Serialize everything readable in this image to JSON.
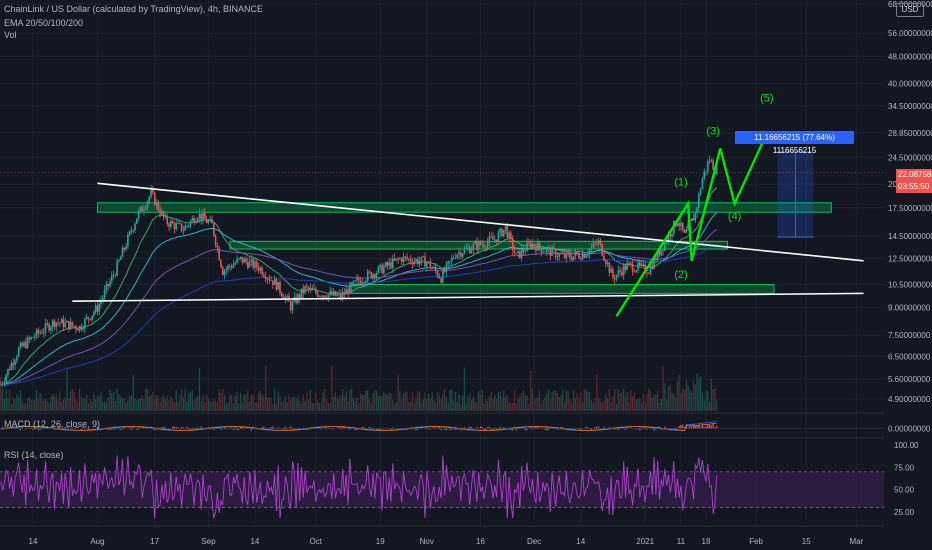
{
  "header": {
    "symbol_line": "ChainLink / US Dollar (calculated by TradingView), 4h, BINANCE",
    "ema_line": "EMA 20/50/100/200",
    "vol_line": "Vol",
    "currency_badge": "USD"
  },
  "colors": {
    "background": "#131722",
    "up": "#26a69a",
    "down": "#ef5350",
    "ema20": "#3cb371",
    "ema50": "#26c6da",
    "ema100": "#7e57c2",
    "ema200": "#1e3fd0",
    "zone": "#00c853",
    "trendline": "#ffffff",
    "wave": "#00e600",
    "rsi_line": "#b03fcf",
    "rsi_band": "#3b1f52",
    "measure": "#2962ff",
    "macd_line": "#2962ff",
    "signal_line": "#ff6d00"
  },
  "chart_data": {
    "type": "candlestick",
    "price_axis": {
      "scale": "log",
      "ticks": [
        "68.00000000",
        "56.00000000",
        "48.00000000",
        "40.00000000",
        "34.50000000",
        "28.85000000",
        "24.50000000",
        "20.50000000",
        "17.50000000",
        "14.50000000",
        "12.50000000",
        "10.50000000",
        "9.00000000",
        "7.50000000",
        "6.50000000",
        "5.60000000",
        "4.90000000"
      ],
      "tick_values": [
        68,
        56,
        48,
        40,
        34.5,
        28.85,
        24.5,
        20.5,
        17.5,
        14.5,
        12.5,
        10.5,
        9,
        7.5,
        6.5,
        5.6,
        4.9
      ]
    },
    "current_price": {
      "label": "22.08758427",
      "value": 22.08758427,
      "countdown": "03:55:50"
    },
    "time_axis": {
      "labels": [
        "14",
        "Aug",
        "17",
        "Sep",
        "14",
        "Oct",
        "19",
        "Nov",
        "16",
        "Dec",
        "14",
        "2021",
        "11",
        "18",
        "Feb",
        "15",
        "Mar"
      ],
      "dates": [
        "2020-07-14",
        "2020-08-01",
        "2020-08-17",
        "2020-09-01",
        "2020-09-14",
        "2020-10-01",
        "2020-10-19",
        "2020-11-01",
        "2020-11-16",
        "2020-12-01",
        "2020-12-14",
        "2021-01-01",
        "2021-01-11",
        "2021-01-18",
        "2021-02-01",
        "2021-02-15",
        "2021-03-01"
      ]
    },
    "price_path": [
      [
        "2020-07-05",
        5.4
      ],
      [
        "2020-07-10",
        6.8
      ],
      [
        "2020-07-14",
        7.4
      ],
      [
        "2020-07-20",
        8.2
      ],
      [
        "2020-07-27",
        7.9
      ],
      [
        "2020-08-01",
        9.0
      ],
      [
        "2020-08-06",
        11.5
      ],
      [
        "2020-08-12",
        16.5
      ],
      [
        "2020-08-16",
        19.2
      ],
      [
        "2020-08-20",
        16.0
      ],
      [
        "2020-08-25",
        15.2
      ],
      [
        "2020-08-29",
        16.8
      ],
      [
        "2020-09-02",
        15.6
      ],
      [
        "2020-09-05",
        11.5
      ],
      [
        "2020-09-10",
        12.4
      ],
      [
        "2020-09-15",
        11.8
      ],
      [
        "2020-09-20",
        10.5
      ],
      [
        "2020-09-24",
        9.1
      ],
      [
        "2020-09-28",
        10.2
      ],
      [
        "2020-10-02",
        9.9
      ],
      [
        "2020-10-08",
        9.7
      ],
      [
        "2020-10-13",
        10.8
      ],
      [
        "2020-10-19",
        11.6
      ],
      [
        "2020-10-25",
        12.5
      ],
      [
        "2020-11-01",
        12.2
      ],
      [
        "2020-11-05",
        11.0
      ],
      [
        "2020-11-09",
        12.9
      ],
      [
        "2020-11-14",
        13.5
      ],
      [
        "2020-11-20",
        14.2
      ],
      [
        "2020-11-23",
        15.3
      ],
      [
        "2020-11-26",
        12.6
      ],
      [
        "2020-11-30",
        13.8
      ],
      [
        "2020-12-05",
        13.1
      ],
      [
        "2020-12-10",
        12.6
      ],
      [
        "2020-12-15",
        12.9
      ],
      [
        "2020-12-19",
        13.9
      ],
      [
        "2020-12-23",
        11.0
      ],
      [
        "2020-12-27",
        11.9
      ],
      [
        "2021-01-02",
        11.6
      ],
      [
        "2021-01-06",
        13.6
      ],
      [
        "2021-01-10",
        16.2
      ],
      [
        "2021-01-12",
        14.5
      ],
      [
        "2021-01-15",
        16.8
      ],
      [
        "2021-01-17",
        21.3
      ],
      [
        "2021-01-19",
        24.2
      ],
      [
        "2021-01-21",
        22.1
      ]
    ],
    "volume_scale_max": 1.0,
    "rsi_axis": {
      "ticks": [
        "100.00",
        "75.00",
        "50.00",
        "25.00"
      ],
      "values": [
        100,
        75,
        50,
        25
      ],
      "upper": 70,
      "lower": 30
    },
    "macd": {
      "label": "MACD (12, 26, close, 9)",
      "ticks": [
        "0.00000000"
      ]
    },
    "rsi": {
      "label": "RSI (14, close)"
    },
    "drawings": {
      "zones": [
        {
          "from": "2020-08-01",
          "to": "2021-02-22",
          "low": 17.0,
          "high": 18.1
        },
        {
          "from": "2020-09-07",
          "to": "2021-01-24",
          "low": 13.3,
          "high": 14.0
        },
        {
          "from": "2020-10-11",
          "to": "2021-02-06",
          "low": 9.9,
          "high": 10.5
        }
      ],
      "trendlines": [
        {
          "from": [
            "2020-08-01",
            20.6
          ],
          "to": [
            "2021-03-03",
            12.3
          ]
        },
        {
          "from": [
            "2020-07-25",
            9.4
          ],
          "to": [
            "2021-03-03",
            9.9
          ]
        }
      ],
      "wave_path": [
        [
          "2020-12-24",
          8.5
        ],
        [
          "2021-01-13",
          18.0
        ],
        [
          "2021-01-14",
          12.3
        ],
        [
          "2021-01-22",
          26.0
        ],
        [
          "2021-01-26",
          18.0
        ],
        [
          "2021-02-04",
          28.8
        ]
      ],
      "wave_labels": [
        {
          "text": "(1)",
          "at": [
            "2021-01-11",
            20.3
          ]
        },
        {
          "text": "(2)",
          "at": [
            "2021-01-11",
            10.95
          ]
        },
        {
          "text": "(3)",
          "at": [
            "2021-01-20",
            28.5
          ]
        },
        {
          "text": "(4)",
          "at": [
            "2021-01-26",
            16.2
          ]
        },
        {
          "text": "(5)",
          "at": [
            "2021-02-04",
            35.5
          ]
        }
      ],
      "measure": {
        "from": "2021-02-07",
        "to": "2021-02-17",
        "low": 14.4,
        "high": 25.4,
        "label": "11.16656215 (77.64%) 1116656215"
      }
    }
  }
}
